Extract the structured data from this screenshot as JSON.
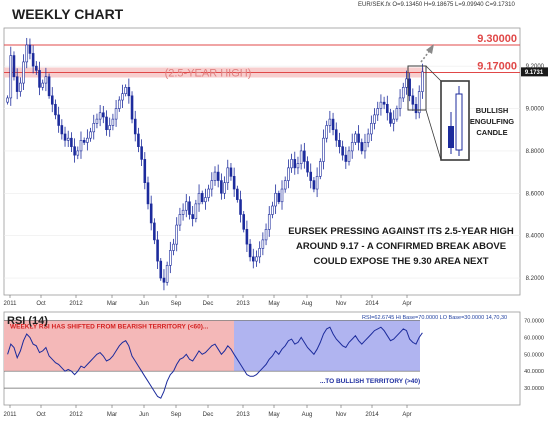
{
  "chart_data": [
    {
      "type": "candlestick",
      "title": "WEEKLY CHART",
      "symbol_readout": "EUR/SEK.fx O=9.13450 H=9.18675 L=9.09940 C=9.17310",
      "x_tick_labels": [
        "2011",
        "Oct",
        "2012",
        "Mar",
        "Jun",
        "Sep",
        "Dec",
        "2013",
        "May",
        "Aug",
        "Nov",
        "2014",
        "Apr"
      ],
      "y_tick_labels": [
        "9.2000",
        "9.0000",
        "8.8000",
        "8.6000",
        "8.4000",
        "8.2000"
      ],
      "ylim": [
        8.12,
        9.38
      ],
      "last_price_label": "9.1731",
      "horizontal_lines": [
        {
          "label": "9.30000",
          "value": 9.3,
          "color": "#e04848"
        },
        {
          "label": "9.17000",
          "value": 9.17,
          "color": "#e04848",
          "band_label": "(2.5-YEAR HIGH)"
        }
      ],
      "annotations": {
        "candle_callout": "BULLISH ENGULFING CANDLE",
        "main_text": [
          "EURSEK PRESSING AGAINST ITS 2.5-YEAR HIGH",
          "AROUND 9.17 - A CONFIRMED BREAK ABOVE",
          "COULD EXPOSE THE 9.30 AREA NEXT"
        ]
      },
      "close_series": [
        9.05,
        9.25,
        9.15,
        9.08,
        9.12,
        9.22,
        9.3,
        9.26,
        9.2,
        9.18,
        9.1,
        9.12,
        9.15,
        9.06,
        9.02,
        8.97,
        8.92,
        8.88,
        8.85,
        8.86,
        8.82,
        8.78,
        8.8,
        8.85,
        8.84,
        8.86,
        8.89,
        8.93,
        8.95,
        8.98,
        8.96,
        8.9,
        8.92,
        8.95,
        9.0,
        9.04,
        9.07,
        9.1,
        9.06,
        8.95,
        8.88,
        8.82,
        8.76,
        8.65,
        8.55,
        8.46,
        8.38,
        8.28,
        8.2,
        8.18,
        8.26,
        8.33,
        8.36,
        8.45,
        8.5,
        8.52,
        8.56,
        8.5,
        8.48,
        8.55,
        8.6,
        8.56,
        8.58,
        8.62,
        8.66,
        8.7,
        8.66,
        8.6,
        8.65,
        8.72,
        8.68,
        8.62,
        8.57,
        8.5,
        8.43,
        8.36,
        8.3,
        8.28,
        8.3,
        8.34,
        8.38,
        8.43,
        8.5,
        8.54,
        8.6,
        8.56,
        8.62,
        8.66,
        8.72,
        8.76,
        8.72,
        8.74,
        8.8,
        8.75,
        8.7,
        8.66,
        8.62,
        8.68,
        8.75,
        8.86,
        8.92,
        8.95,
        8.9,
        8.85,
        8.82,
        8.78,
        8.75,
        8.8,
        8.84,
        8.88,
        8.84,
        8.8,
        8.84,
        8.88,
        8.93,
        8.97,
        9.0,
        9.03,
        9.02,
        8.98,
        8.93,
        8.95,
        9.0,
        9.05,
        9.1,
        9.14,
        9.06,
        9.02,
        8.98,
        9.08,
        9.173
      ],
      "candle_colors": {
        "up": "#ffffff",
        "down": "#1c2b9c",
        "outline": "#1c2b9c"
      }
    },
    {
      "type": "line",
      "title": "RSI (14)",
      "readout": "RSI=62.6745 Hi Base=70.0000 LO Base=30.0000 14,70,30",
      "y_tick_labels": [
        "70.0000",
        "60.0000",
        "50.0000",
        "40.0000",
        "30.0000"
      ],
      "ylim": [
        20,
        75
      ],
      "levels": [
        30,
        40,
        70
      ],
      "zones": [
        {
          "label": "WEEKLY RSI HAS SHIFTED FROM BEARISH TERRITORY (<60)...",
          "range": [
            40,
            70
          ],
          "color": "#f4b8b8",
          "text_color": "#d42020"
        },
        {
          "label": "...TO BULLISH TERRITORY (>40)",
          "range": [
            40,
            70
          ],
          "color": "#b0b4f0",
          "text_color": "#1f2fa0"
        }
      ],
      "values": [
        50,
        56,
        54,
        48,
        52,
        58,
        62,
        60,
        56,
        55,
        51,
        52,
        54,
        49,
        47,
        45,
        44,
        42,
        40,
        41,
        40,
        38,
        40,
        43,
        42,
        44,
        46,
        48,
        50,
        51,
        49,
        46,
        47,
        49,
        52,
        55,
        57,
        58,
        55,
        49,
        46,
        43,
        40,
        37,
        34,
        31,
        28,
        25,
        24,
        28,
        34,
        38,
        40,
        44,
        47,
        48,
        50,
        47,
        46,
        49,
        52,
        50,
        51,
        53,
        55,
        56,
        53,
        50,
        52,
        55,
        53,
        50,
        47,
        44,
        41,
        38,
        37,
        37,
        38,
        40,
        42,
        44,
        47,
        49,
        52,
        50,
        53,
        55,
        58,
        59,
        56,
        57,
        60,
        57,
        54,
        52,
        50,
        53,
        57,
        62,
        65,
        66,
        62,
        59,
        57,
        55,
        54,
        57,
        59,
        61,
        58,
        56,
        58,
        60,
        62,
        64,
        65,
        66,
        64,
        61,
        58,
        59,
        61,
        63,
        65,
        64,
        59,
        57,
        56,
        60,
        62.7
      ]
    }
  ]
}
